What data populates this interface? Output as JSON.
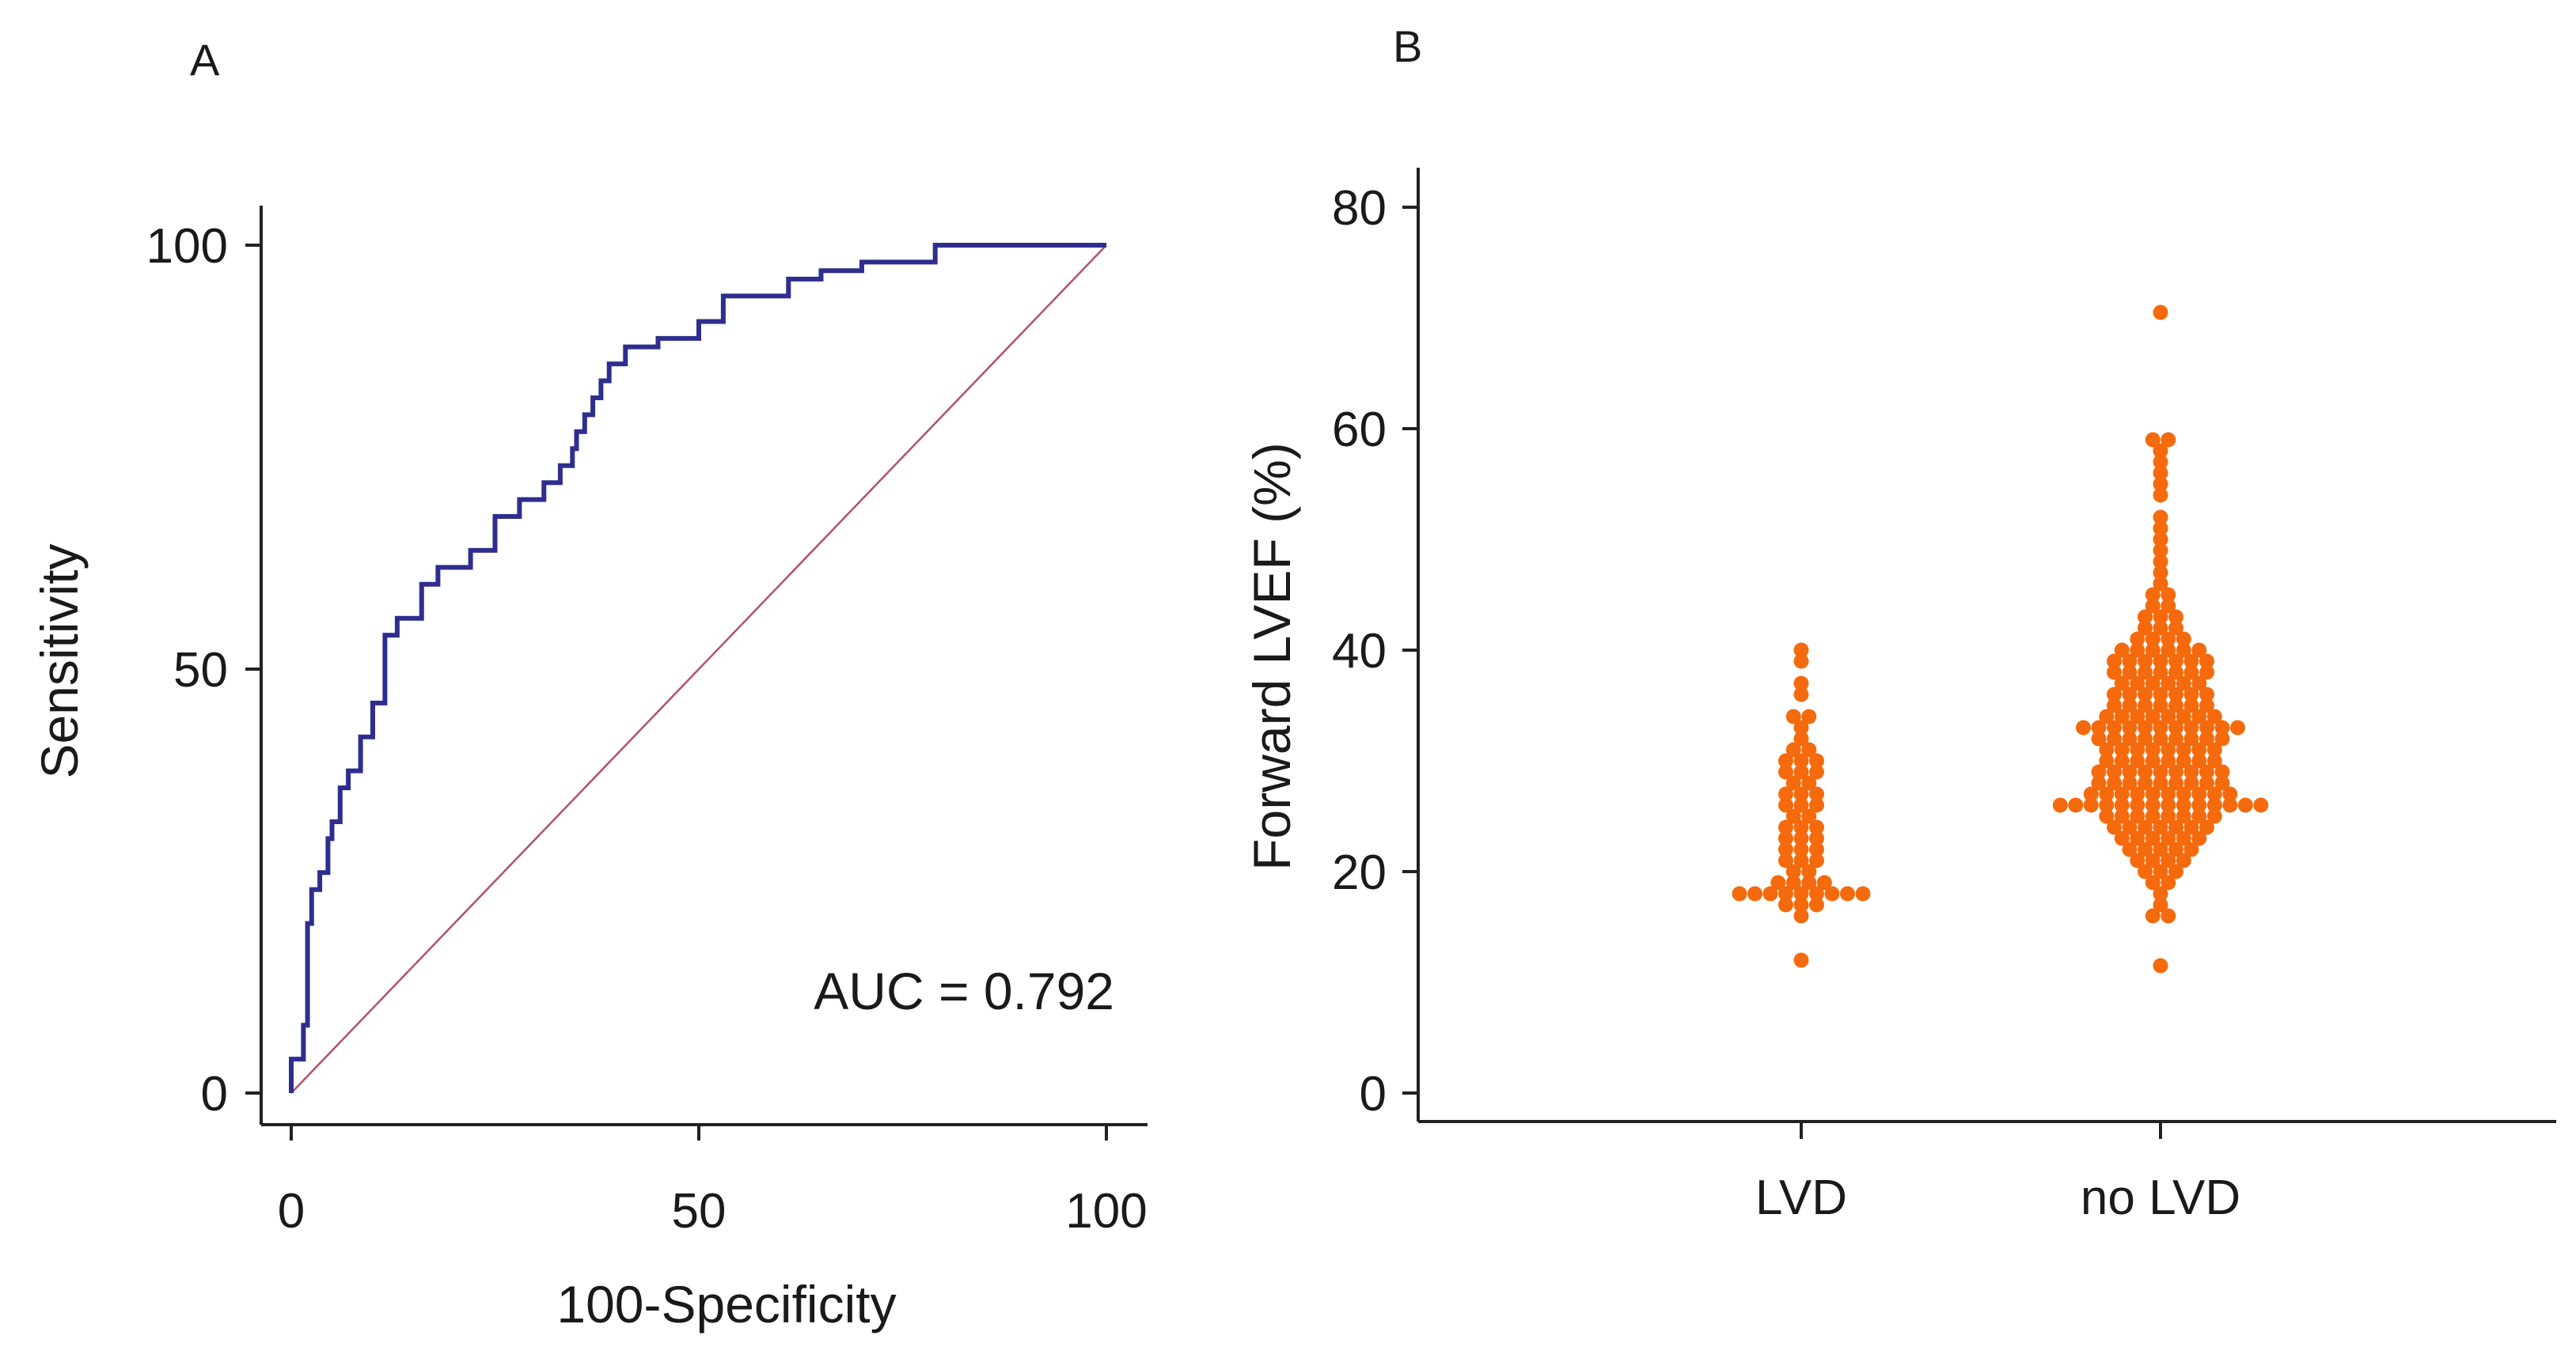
{
  "colors": {
    "roc_curve": "#2e2e8f",
    "reference_line": "#b4506a",
    "dots": "#f46a0c",
    "axis": "#222222"
  },
  "chart_data": [
    {
      "panel": "A",
      "type": "line",
      "title": "",
      "xlabel": "100-Specificity",
      "ylabel": "Sensitivity",
      "xlim": [
        0,
        100
      ],
      "ylim": [
        0,
        100
      ],
      "xticks": [
        0,
        50,
        100
      ],
      "yticks": [
        0,
        50,
        100
      ],
      "grid": false,
      "annotation": "AUC = 0.792",
      "series": [
        {
          "name": "ROC curve",
          "x": [
            0,
            0,
            1.5,
            1.5,
            2,
            2,
            2.5,
            2.5,
            3.5,
            3.5,
            4.5,
            4.5,
            5,
            5,
            6,
            6,
            7,
            7,
            8.5,
            8.5,
            10,
            10,
            11.5,
            11.5,
            13,
            13,
            16,
            16,
            18,
            18,
            22,
            22,
            25,
            25,
            28,
            28,
            31,
            31,
            33,
            33,
            34.5,
            34.5,
            35,
            35,
            36,
            36,
            37,
            37,
            38,
            38,
            39,
            39,
            41,
            41,
            45,
            45,
            50,
            50,
            53,
            53,
            61,
            61,
            65,
            65,
            70,
            70,
            79,
            79,
            100
          ],
          "y": [
            0,
            4,
            4,
            8,
            8,
            20,
            20,
            24,
            24,
            26,
            26,
            30,
            30,
            32,
            32,
            36,
            36,
            38,
            38,
            42,
            42,
            46,
            46,
            54,
            54,
            56,
            56,
            60,
            60,
            62,
            62,
            64,
            64,
            68,
            68,
            70,
            70,
            72,
            72,
            74,
            74,
            76,
            76,
            78,
            78,
            80,
            80,
            82,
            82,
            84,
            84,
            86,
            86,
            88,
            88,
            89,
            89,
            91,
            91,
            94,
            94,
            96,
            96,
            97,
            97,
            98,
            98,
            100,
            100
          ]
        },
        {
          "name": "Reference line",
          "x": [
            0,
            100
          ],
          "y": [
            0,
            100
          ]
        }
      ]
    },
    {
      "panel": "B",
      "type": "scatter",
      "title": "",
      "xlabel": "",
      "ylabel": "Forward LVEF (%)",
      "ylim": [
        0,
        80
      ],
      "yticks": [
        0,
        20,
        40,
        60,
        80
      ],
      "categories": [
        "LVD",
        "no LVD"
      ],
      "grid": false,
      "series": [
        {
          "name": "LVD",
          "values": [
            12,
            16,
            17,
            17,
            17,
            18,
            18,
            18,
            18,
            18,
            18,
            18,
            18,
            18,
            19,
            19,
            19,
            19,
            20,
            20,
            21,
            21,
            21,
            22,
            22,
            22,
            23,
            23,
            23,
            24,
            24,
            24,
            25,
            25,
            26,
            26,
            26,
            27,
            27,
            27,
            28,
            28,
            29,
            29,
            29,
            30,
            30,
            30,
            31,
            31,
            32,
            33,
            34,
            34,
            36,
            37,
            39,
            40
          ]
        },
        {
          "name": "no LVD",
          "values": [
            11.5,
            16,
            16,
            17,
            18,
            19,
            19,
            20,
            20,
            20,
            21,
            21,
            21,
            21,
            22,
            22,
            22,
            22,
            22,
            23,
            23,
            23,
            23,
            23,
            23,
            24,
            24,
            24,
            24,
            24,
            24,
            24,
            25,
            25,
            25,
            25,
            25,
            25,
            25,
            25,
            26,
            26,
            26,
            26,
            26,
            26,
            26,
            26,
            26,
            26,
            26,
            26,
            26,
            26,
            27,
            27,
            27,
            27,
            27,
            27,
            27,
            27,
            27,
            27,
            28,
            28,
            28,
            28,
            28,
            28,
            28,
            28,
            28,
            29,
            29,
            29,
            29,
            29,
            29,
            29,
            29,
            29,
            30,
            30,
            30,
            30,
            30,
            30,
            30,
            30,
            31,
            31,
            31,
            31,
            31,
            31,
            31,
            31,
            32,
            32,
            32,
            32,
            32,
            32,
            32,
            32,
            32,
            33,
            33,
            33,
            33,
            33,
            33,
            33,
            33,
            33,
            33,
            33,
            34,
            34,
            34,
            34,
            34,
            34,
            34,
            34,
            35,
            35,
            35,
            35,
            35,
            35,
            35,
            36,
            36,
            36,
            36,
            36,
            36,
            36,
            37,
            37,
            37,
            37,
            37,
            37,
            38,
            38,
            38,
            38,
            38,
            38,
            38,
            39,
            39,
            39,
            39,
            39,
            39,
            39,
            40,
            40,
            40,
            40,
            40,
            40,
            41,
            41,
            41,
            41,
            42,
            42,
            42,
            43,
            43,
            43,
            44,
            44,
            45,
            45,
            46,
            47,
            48,
            49,
            50,
            51,
            52,
            54,
            55,
            56,
            57,
            58,
            59,
            59,
            70.5
          ]
        }
      ]
    }
  ]
}
